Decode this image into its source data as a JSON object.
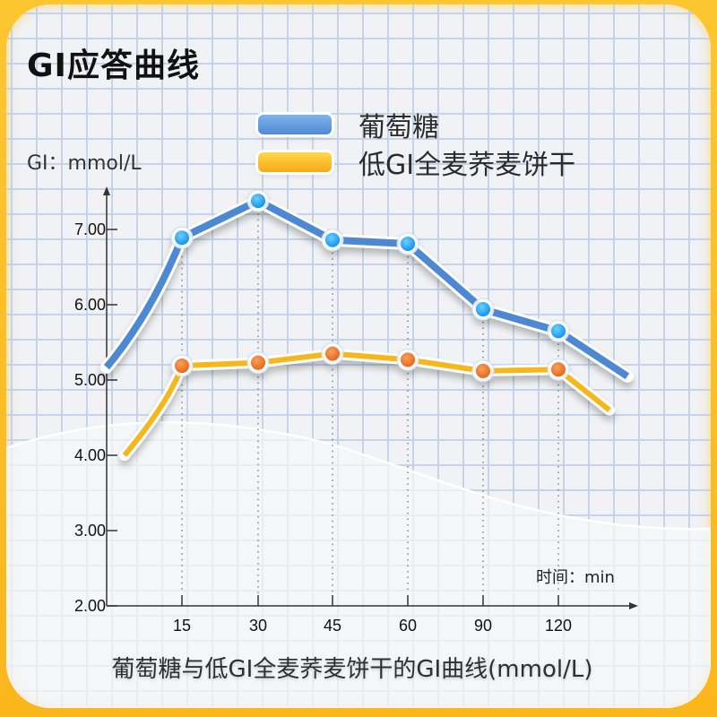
{
  "title": "GI应答曲线",
  "y_axis_label": "GI：mmol/L",
  "x_axis_label": "时间：min",
  "caption": "葡萄糖与低GI全麦荞麦饼干的GI曲线(mmol/L)",
  "legend": [
    {
      "label": "葡萄糖",
      "color": "#4e89d2"
    },
    {
      "label": "低GI全麦荞麦饼干",
      "color": "#f6b71e"
    }
  ],
  "colors": {
    "frame": "#fbbd1e",
    "background": "#f0f2f5",
    "grid": "#bfd0e3",
    "glucose_line": "#4e89d2",
    "glucose_marker": "#1aa3f5",
    "cookie_line": "#f6b71e",
    "cookie_marker": "#ee7a2e"
  },
  "y_ticks": [
    "7.00",
    "6.00",
    "5.00",
    "4.00",
    "3.00",
    "2.00"
  ],
  "x_ticks": [
    "15",
    "30",
    "45",
    "60",
    "90",
    "120"
  ],
  "chart_data": {
    "type": "line",
    "title": "GI应答曲线",
    "subtitle": "葡萄糖与低GI全麦荞麦饼干的GI曲线(mmol/L)",
    "xlabel": "时间：min",
    "ylabel": "GI：mmol/L",
    "categories": [
      "15",
      "30",
      "45",
      "60",
      "90",
      "120"
    ],
    "x": [
      15,
      30,
      45,
      60,
      90,
      120
    ],
    "series": [
      {
        "name": "葡萄糖",
        "values": [
          6.89,
          7.38,
          6.86,
          6.81,
          5.94,
          5.65
        ],
        "start_value": 5.17,
        "end_value": 5.05
      },
      {
        "name": "低GI全麦荞麦饼干",
        "values": [
          5.19,
          5.23,
          5.35,
          5.27,
          5.12,
          5.14
        ],
        "start_value": 4.0,
        "end_value": 4.6
      }
    ],
    "ylim": [
      2.0,
      7.5
    ],
    "yticks": [
      2.0,
      3.0,
      4.0,
      5.0,
      6.0,
      7.0
    ],
    "grid": true,
    "legend_position": "top"
  }
}
